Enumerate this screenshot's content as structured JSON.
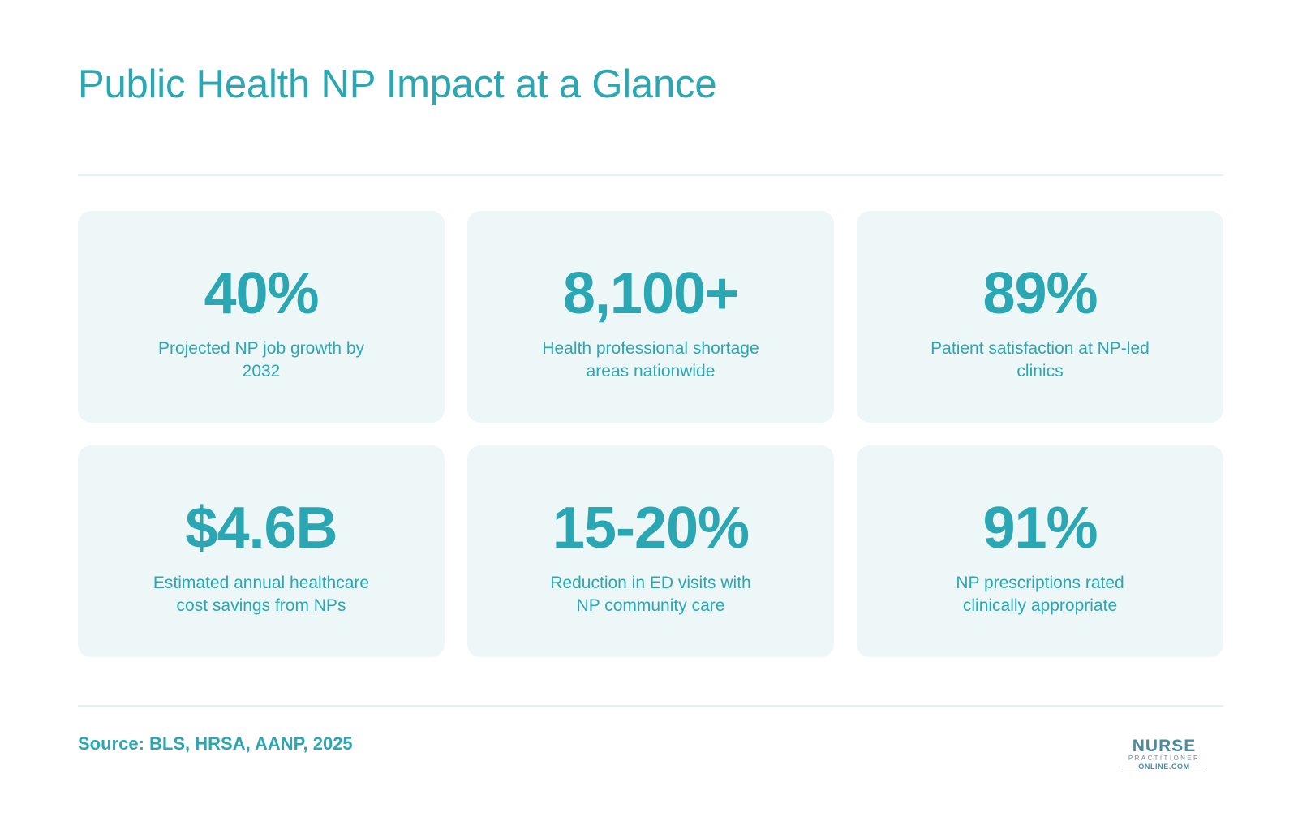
{
  "title": "Public Health NP Impact at a Glance",
  "stats": [
    {
      "value": "40%",
      "label": "Projected NP job growth by 2032"
    },
    {
      "value": "8,100+",
      "label": "Health professional shortage areas nationwide"
    },
    {
      "value": "89%",
      "label": "Patient satisfaction at NP-led clinics"
    },
    {
      "value": "$4.6B",
      "label": "Estimated annual healthcare cost savings from NPs"
    },
    {
      "value": "15-20%",
      "label": "Reduction in ED visits with NP community care"
    },
    {
      "value": "91%",
      "label": "NP prescriptions rated clinically appropriate"
    }
  ],
  "source": "Source: BLS, HRSA, AANP, 2025",
  "logo": {
    "main": "NURSE",
    "sub": "PRACTITIONER",
    "domain": "ONLINE.COM"
  },
  "colors": {
    "accent": "#2aa7b3",
    "card_bg": "#edf7f8",
    "divider": "#e3f1f3"
  }
}
